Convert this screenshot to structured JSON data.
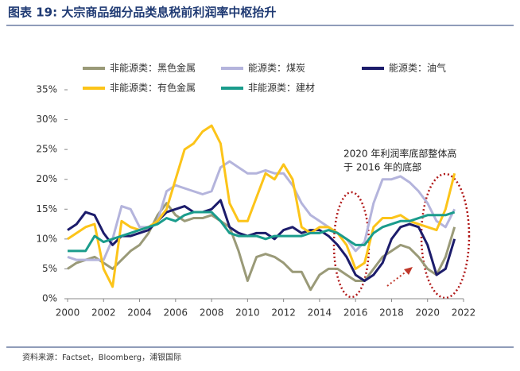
{
  "chart_data": {
    "type": "line",
    "title": "图表 19: 大宗商品细分品类息税前利润率中枢抬升",
    "source": "资料来源：Factset，Bloomberg，浦银国际",
    "annotation": [
      "2020 年利润率底部整体高",
      "于 2016 年的底部"
    ],
    "x": [
      2000,
      2000.5,
      2001,
      2001.5,
      2002,
      2002.5,
      2003,
      2003.5,
      2004,
      2004.5,
      2005,
      2005.5,
      2006,
      2006.5,
      2007,
      2007.5,
      2008,
      2008.5,
      2009,
      2009.5,
      2010,
      2010.5,
      2011,
      2011.5,
      2012,
      2012.5,
      2013,
      2013.5,
      2014,
      2014.5,
      2015,
      2015.5,
      2016,
      2016.5,
      2017,
      2017.5,
      2018,
      2018.5,
      2019,
      2019.5,
      2020,
      2020.5,
      2021,
      2021.5
    ],
    "xlim": [
      2000,
      2022
    ],
    "xticks": [
      2000,
      2002,
      2004,
      2006,
      2008,
      2010,
      2012,
      2014,
      2016,
      2018,
      2020,
      2022
    ],
    "ylim": [
      0,
      35
    ],
    "yticks": [
      {
        "value": 0,
        "label": "0%"
      },
      {
        "value": 5,
        "label": "5%"
      },
      {
        "value": 10,
        "label": "10%"
      },
      {
        "value": 15,
        "label": "15%"
      },
      {
        "value": 20,
        "label": "20%"
      },
      {
        "value": 25,
        "label": "25%"
      },
      {
        "value": 30,
        "label": "30%"
      },
      {
        "value": 35,
        "label": "35%"
      }
    ],
    "grid": false,
    "series": [
      {
        "name": "非能源类：黑色金属",
        "color": "#9a9a78",
        "values": [
          5,
          6,
          6.5,
          7,
          6,
          5,
          6.5,
          8,
          9,
          11,
          14,
          16,
          14,
          13,
          13.5,
          13.5,
          14,
          13,
          12,
          8,
          3,
          7,
          7.5,
          7,
          6,
          4.5,
          4.5,
          1.5,
          4,
          5,
          5,
          4,
          3,
          3,
          5,
          7,
          8,
          9,
          8.5,
          7,
          5,
          4,
          7,
          12
        ]
      },
      {
        "name": "能源类：煤炭",
        "color": "#b4b4dc",
        "values": [
          7,
          6.5,
          6.5,
          6.5,
          6.5,
          10,
          15.5,
          15,
          12,
          12,
          13,
          18,
          19,
          18.5,
          18,
          17.5,
          18,
          22,
          23,
          22,
          21,
          21,
          21.5,
          21,
          21,
          19,
          16,
          14,
          13,
          12,
          11,
          10,
          8,
          9.5,
          16,
          20,
          20,
          20.5,
          19.5,
          18,
          16,
          13,
          12,
          15
        ]
      },
      {
        "name": "能源类：油气",
        "color": "#1c1c6b",
        "values": [
          11.5,
          12.5,
          14.5,
          14,
          11,
          9,
          10.5,
          10.5,
          11,
          11.5,
          13,
          14.5,
          15,
          15.5,
          14.5,
          14.5,
          15,
          16.5,
          12,
          11,
          10.5,
          11,
          11,
          10,
          11.5,
          12,
          11,
          11.5,
          11.5,
          10.5,
          9,
          7,
          4,
          3,
          4,
          6,
          10,
          12,
          12.5,
          12,
          9,
          4,
          5,
          10
        ]
      },
      {
        "name": "非能源类：有色金属",
        "color": "#fcc419",
        "values": [
          10,
          11,
          12,
          12.5,
          5,
          2,
          13,
          12,
          11.5,
          12,
          13,
          15,
          20,
          25,
          26,
          28,
          29,
          26,
          16,
          13,
          13,
          17,
          21,
          20,
          22.5,
          20,
          12,
          11,
          12,
          12,
          11,
          9,
          5,
          6,
          12,
          13.5,
          13.5,
          14,
          13,
          12.5,
          12,
          11.5,
          15,
          21
        ]
      },
      {
        "name": "非能源类：建材",
        "color": "#1a9c8c",
        "values": [
          8,
          8,
          8,
          10.5,
          9.5,
          10,
          10.5,
          11,
          11.5,
          12,
          12.5,
          13.5,
          13,
          14,
          14.5,
          14.5,
          14.5,
          13,
          11,
          10.5,
          10.5,
          10.5,
          10,
          10.5,
          10.5,
          10.5,
          10.5,
          11,
          11,
          11.5,
          11,
          10,
          9,
          9,
          11,
          12,
          12.5,
          13,
          13,
          13.5,
          14,
          14,
          14,
          14.5
        ]
      }
    ]
  }
}
